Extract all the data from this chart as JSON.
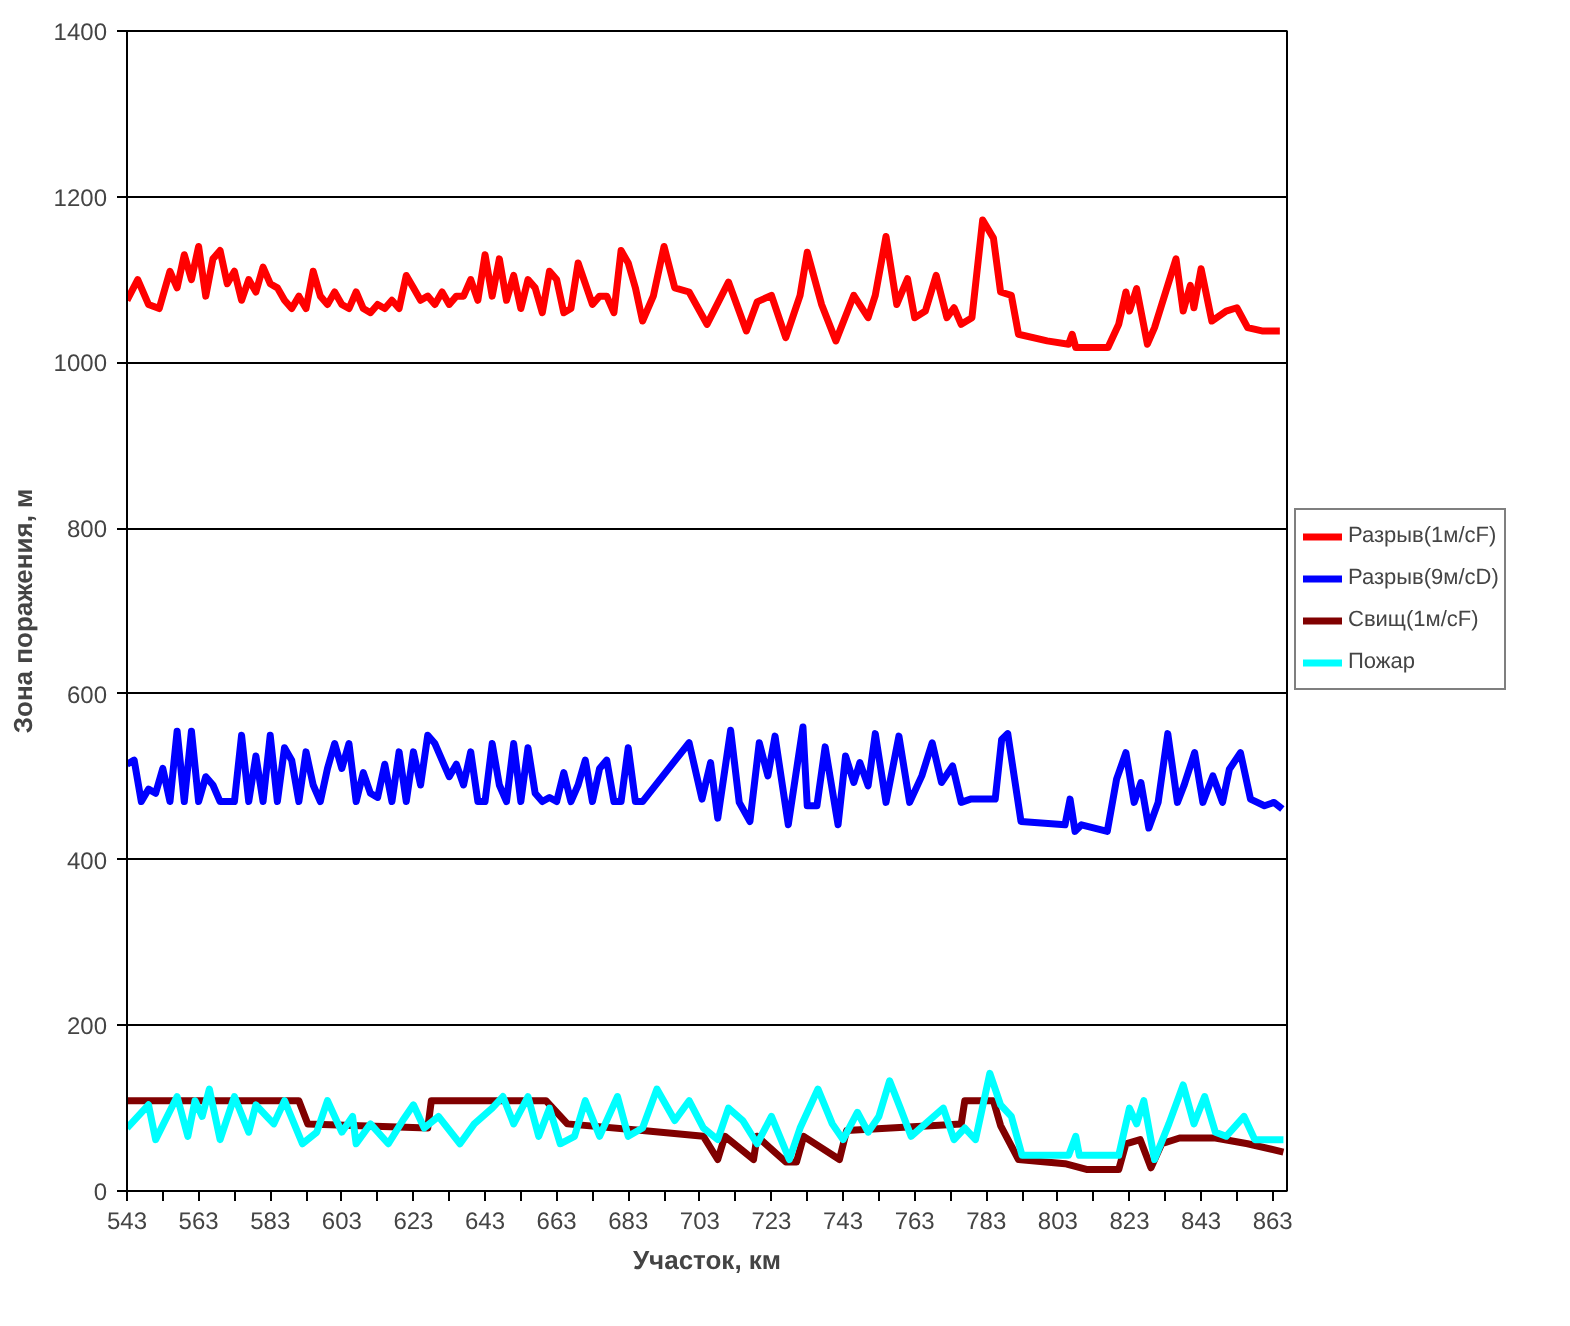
{
  "chart_data": {
    "type": "line",
    "xlabel": "Участок, км",
    "ylabel": "Зона поражения, м",
    "xlim": [
      543,
      867
    ],
    "ylim": [
      0,
      1400
    ],
    "xticks": [
      543,
      {
        "value": 553,
        "label": null
      },
      563,
      {
        "value": 573,
        "label": null
      },
      583,
      {
        "value": 593,
        "label": null
      },
      603,
      {
        "value": 613,
        "label": null
      },
      623,
      {
        "value": 633,
        "label": null
      },
      643,
      {
        "value": 653,
        "label": null
      },
      663,
      {
        "value": 673,
        "label": null
      },
      683,
      {
        "value": 693,
        "label": null
      },
      703,
      {
        "value": 713,
        "label": null
      },
      723,
      {
        "value": 733,
        "label": null
      },
      743,
      {
        "value": 753,
        "label": null
      },
      763,
      {
        "value": 773,
        "label": null
      },
      783,
      {
        "value": 793,
        "label": null
      },
      803,
      {
        "value": 813,
        "label": null
      },
      823,
      {
        "value": 833,
        "label": null
      },
      843,
      {
        "value": 853,
        "label": null
      },
      863
    ],
    "yticks": [
      0,
      200,
      400,
      600,
      800,
      1000,
      1200,
      1400
    ],
    "grid": "y",
    "legend": "right",
    "marker": "none",
    "line_style": "solid",
    "series": [
      {
        "name": "Разрыв(1м/сF)",
        "color": "#ff0000",
        "x": [
          543,
          546,
          549,
          552,
          555,
          557,
          559,
          561,
          563,
          565,
          567,
          569,
          571,
          573,
          575,
          577,
          579,
          581,
          583,
          585,
          587,
          589,
          591,
          593,
          595,
          597,
          599,
          601,
          603,
          605,
          607,
          609,
          611,
          613,
          615,
          617,
          619,
          621,
          623,
          625,
          627,
          629,
          631,
          633,
          635,
          637,
          639,
          641,
          643,
          645,
          647,
          649,
          651,
          653,
          655,
          657,
          659,
          661,
          663,
          665,
          667,
          669,
          671,
          673,
          675,
          677,
          679,
          681,
          683,
          685,
          687,
          690,
          693,
          696,
          700,
          705,
          711,
          716,
          719,
          723,
          727,
          731,
          733,
          737,
          741,
          746,
          750,
          752,
          755,
          758,
          761,
          763,
          766,
          769,
          772,
          774,
          776,
          779,
          782,
          785,
          787,
          790,
          792,
          800,
          806,
          807,
          808,
          817,
          820,
          822,
          823,
          825,
          828,
          830,
          836,
          838,
          840,
          841,
          843,
          846,
          850,
          853,
          856,
          860,
          865
        ],
        "values": [
          1075,
          1100,
          1070,
          1065,
          1110,
          1090,
          1130,
          1100,
          1140,
          1080,
          1125,
          1135,
          1095,
          1110,
          1075,
          1100,
          1085,
          1115,
          1095,
          1090,
          1075,
          1065,
          1080,
          1065,
          1110,
          1080,
          1070,
          1085,
          1070,
          1065,
          1085,
          1065,
          1060,
          1070,
          1065,
          1075,
          1065,
          1105,
          1090,
          1075,
          1080,
          1070,
          1085,
          1070,
          1080,
          1080,
          1100,
          1075,
          1130,
          1080,
          1125,
          1075,
          1105,
          1065,
          1100,
          1090,
          1060,
          1110,
          1100,
          1060,
          1065,
          1120,
          1095,
          1070,
          1080,
          1080,
          1060,
          1135,
          1120,
          1090,
          1050,
          1080,
          1140,
          1090,
          1085,
          1046,
          1097,
          1038,
          1073,
          1081,
          1030,
          1081,
          1133,
          1070,
          1026,
          1081,
          1054,
          1081,
          1152,
          1070,
          1101,
          1054,
          1062,
          1105,
          1054,
          1066,
          1046,
          1054,
          1172,
          1150,
          1085,
          1081,
          1034,
          1026,
          1022,
          1034,
          1018,
          1018,
          1046,
          1085,
          1062,
          1089,
          1022,
          1042,
          1125,
          1062,
          1093,
          1066,
          1113,
          1050,
          1062,
          1066,
          1042,
          1038,
          1038
        ]
      },
      {
        "name": "Разрыв(9м/сD)",
        "color": "#0000ff",
        "x": [
          543,
          545,
          547,
          549,
          551,
          553,
          555,
          557,
          559,
          561,
          563,
          565,
          567,
          569,
          571,
          573,
          575,
          577,
          579,
          581,
          583,
          585,
          587,
          589,
          591,
          593,
          595,
          597,
          599,
          601,
          603,
          605,
          607,
          609,
          611,
          613,
          615,
          617,
          619,
          621,
          623,
          625,
          627,
          629,
          631,
          633,
          635,
          637,
          639,
          641,
          643,
          645,
          647,
          649,
          651,
          653,
          655,
          657,
          659,
          661,
          663,
          665,
          667,
          669,
          671,
          673,
          675,
          677,
          679,
          681,
          683,
          685,
          687,
          700,
          703.6,
          706,
          708,
          711.6,
          714,
          717,
          719.6,
          722,
          724,
          727.7,
          731.8,
          733,
          735.7,
          738,
          741.6,
          743.7,
          746,
          747.7,
          750,
          752,
          755,
          758.6,
          761.6,
          765,
          767.9,
          770.5,
          773.6,
          776,
          778.6,
          785.5,
          787.3,
          789,
          792.7,
          805,
          806.4,
          807.8,
          809.6,
          816.8,
          819.4,
          822,
          824.3,
          826.2,
          828.4,
          831,
          833.7,
          836.4,
          838.2,
          841.2,
          843.5,
          846.3,
          849,
          850.9,
          854,
          856.8,
          860.7,
          863.4,
          865.7
        ],
        "values": [
          515,
          520,
          470,
          485,
          480,
          510,
          470,
          555,
          470,
          555,
          470,
          500,
          490,
          470,
          470,
          470,
          550,
          470,
          525,
          470,
          550,
          470,
          535,
          520,
          470,
          530,
          490,
          470,
          510,
          540,
          510,
          540,
          470,
          505,
          480,
          475,
          515,
          470,
          530,
          470,
          530,
          490,
          550,
          540,
          520,
          500,
          515,
          490,
          530,
          470,
          470,
          540,
          490,
          470,
          540,
          470,
          535,
          480,
          470,
          475,
          470,
          505,
          470,
          490,
          520,
          470,
          510,
          520,
          470,
          470,
          535,
          470,
          470,
          541,
          473,
          517,
          450,
          556,
          469,
          446,
          541,
          501,
          549,
          442,
          560,
          465,
          465,
          536,
          442,
          525,
          493,
          517,
          489,
          552,
          469,
          549,
          469,
          501,
          541,
          493,
          513,
          469,
          473,
          473,
          545,
          552,
          446,
          442,
          473,
          434,
          442,
          434,
          497,
          529,
          469,
          493,
          438,
          469,
          552,
          469,
          489,
          529,
          469,
          501,
          469,
          509,
          529,
          473,
          465,
          469,
          461
        ]
      },
      {
        "name": "Свищ(1м/сF)",
        "color": "#800000",
        "x": [
          543,
          591,
          593.5,
          627,
          628,
          660,
          666,
          687,
          704,
          708,
          710,
          718,
          719,
          727,
          730,
          732,
          742,
          744,
          776,
          777,
          785,
          787,
          792,
          805,
          811,
          820,
          822,
          826,
          829,
          832,
          837,
          847,
          856,
          866
        ],
        "values": [
          109,
          109,
          81,
          76,
          109,
          109,
          81,
          73,
          66,
          38,
          66,
          38,
          66,
          35,
          35,
          66,
          38,
          73,
          81,
          109,
          109,
          79,
          38,
          33,
          26,
          26,
          57,
          62,
          28,
          57,
          64,
          64,
          57,
          47
        ]
      },
      {
        "name": "Пожар",
        "color": "#00ffff",
        "x": [
          543,
          549,
          551,
          557,
          560,
          562,
          564,
          566,
          569,
          573,
          577,
          579,
          582,
          584,
          587,
          592,
          596,
          599,
          603,
          606,
          607,
          611,
          616,
          620,
          623,
          626,
          630,
          636,
          640,
          645,
          648,
          651,
          655,
          658,
          661,
          664,
          668,
          671,
          675,
          680,
          683,
          687,
          691,
          696,
          700,
          704,
          708,
          711,
          715,
          719,
          723,
          728,
          731,
          736,
          740,
          743,
          747,
          750,
          753,
          756,
          759,
          762,
          767,
          771,
          774,
          777,
          780,
          784,
          787,
          790,
          793,
          806,
          808,
          809,
          820,
          823,
          825,
          827,
          830,
          834,
          838,
          841,
          844,
          847,
          850,
          855,
          858,
          862,
          866
        ],
        "values": [
          76,
          104,
          62,
          114,
          66,
          109,
          90,
          123,
          62,
          114,
          71,
          104,
          90,
          81,
          109,
          57,
          71,
          109,
          71,
          90,
          57,
          81,
          57,
          85,
          104,
          76,
          90,
          57,
          81,
          100,
          114,
          81,
          114,
          66,
          100,
          57,
          66,
          109,
          66,
          114,
          66,
          76,
          123,
          85,
          109,
          76,
          62,
          100,
          85,
          57,
          90,
          38,
          76,
          123,
          81,
          62,
          95,
          71,
          90,
          133,
          100,
          66,
          85,
          100,
          62,
          76,
          62,
          142,
          104,
          90,
          43,
          43,
          66,
          43,
          43,
          100,
          81,
          109,
          38,
          81,
          128,
          81,
          114,
          71,
          66,
          90,
          62,
          62,
          62
        ]
      }
    ]
  }
}
